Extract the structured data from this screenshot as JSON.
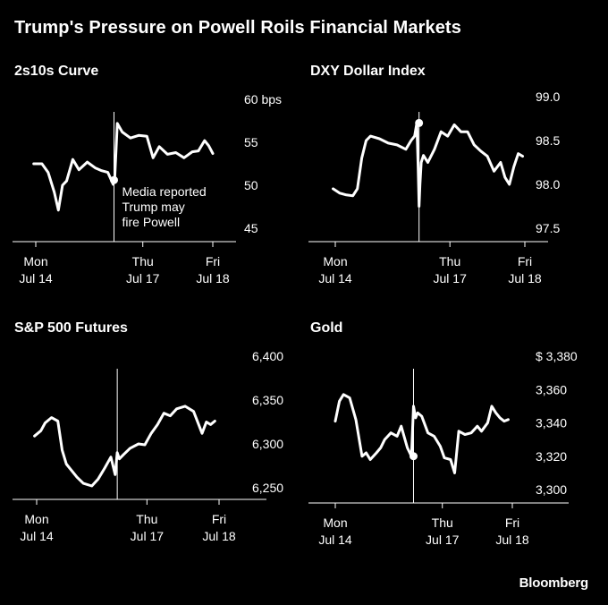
{
  "title": "Trump's Pressure on Powell Roils Financial Markets",
  "source": "Bloomberg",
  "chart_data": [
    {
      "type": "line",
      "title": "2s10s Curve",
      "yunit": "bps",
      "ylim": [
        45,
        60
      ],
      "yticks": [
        60,
        55,
        50,
        45
      ],
      "ytick_labels": [
        "60",
        "55",
        "50",
        "45"
      ],
      "xlim": [
        0,
        4.3
      ],
      "xticks": [
        {
          "x": 0,
          "top": "Mon",
          "bottom": "Jul 14"
        },
        {
          "x": 2.6,
          "top": "Thu",
          "bottom": "Jul 17"
        },
        {
          "x": 4.3,
          "top": "Fri",
          "bottom": "Jul 18"
        }
      ],
      "event_x": 1.9,
      "annotation": [
        "Media reported",
        "Trump may",
        "fire Powell"
      ],
      "series": [
        {
          "x": [
            -0.05,
            0.15,
            0.3,
            0.45,
            0.55,
            0.65,
            0.75,
            0.9,
            1.05,
            1.25,
            1.45,
            1.6,
            1.75,
            1.88,
            1.92,
            1.98,
            2.1,
            2.3,
            2.5,
            2.7,
            2.85,
            3.0,
            3.2,
            3.4,
            3.6,
            3.8,
            3.95,
            4.1,
            4.2,
            4.3
          ],
          "y": [
            52.5,
            52.5,
            51.5,
            49.2,
            47.1,
            50.0,
            50.5,
            53.0,
            51.8,
            52.7,
            52.0,
            51.7,
            51.5,
            50.1,
            51.0,
            57.2,
            56.2,
            55.5,
            55.8,
            55.7,
            53.2,
            54.5,
            53.6,
            53.8,
            53.2,
            53.9,
            54.0,
            55.2,
            54.6,
            53.7
          ]
        }
      ]
    },
    {
      "type": "line",
      "title": "DXY Dollar Index",
      "ylim": [
        97.5,
        99.0
      ],
      "yticks": [
        99.0,
        98.5,
        98.0,
        97.5
      ],
      "ytick_labels": [
        "99.0",
        "98.5",
        "98.0",
        "97.5"
      ],
      "xlim": [
        0,
        4.3
      ],
      "xticks": [
        {
          "x": 0,
          "top": "Mon",
          "bottom": "Jul 14"
        },
        {
          "x": 2.6,
          "top": "Thu",
          "bottom": "Jul 17"
        },
        {
          "x": 4.3,
          "top": "Fri",
          "bottom": "Jul 18"
        }
      ],
      "event_x": 1.9,
      "series": [
        {
          "x": [
            -0.05,
            0.1,
            0.25,
            0.4,
            0.5,
            0.6,
            0.7,
            0.8,
            1.0,
            1.2,
            1.4,
            1.6,
            1.72,
            1.8,
            1.85,
            1.88,
            1.9,
            1.92,
            1.95,
            2.0,
            2.1,
            2.25,
            2.4,
            2.55,
            2.7,
            2.85,
            3.0,
            3.15,
            3.3,
            3.45,
            3.6,
            3.75,
            3.85,
            3.95,
            4.05,
            4.15,
            4.25
          ],
          "y": [
            97.95,
            97.9,
            97.88,
            97.87,
            97.95,
            98.3,
            98.5,
            98.55,
            98.52,
            98.47,
            98.45,
            98.4,
            98.5,
            98.55,
            98.7,
            98.18,
            97.75,
            98.0,
            98.25,
            98.33,
            98.25,
            98.4,
            98.6,
            98.55,
            98.68,
            98.6,
            98.6,
            98.45,
            98.38,
            98.32,
            98.15,
            98.25,
            98.08,
            98.0,
            98.2,
            98.35,
            98.32
          ]
        }
      ]
    },
    {
      "type": "line",
      "title": "S&P 500 Futures",
      "ylim": [
        6250,
        6400
      ],
      "yticks": [
        6400,
        6350,
        6300,
        6250
      ],
      "ytick_labels": [
        "6,400",
        "6,350",
        "6,300",
        "6,250"
      ],
      "xlim": [
        0,
        4.3
      ],
      "xticks": [
        {
          "x": 0,
          "top": "Mon",
          "bottom": "Jul 14"
        },
        {
          "x": 2.6,
          "top": "Thu",
          "bottom": "Jul 17"
        },
        {
          "x": 4.3,
          "top": "Fri",
          "bottom": "Jul 18"
        }
      ],
      "event_x": 1.9,
      "series": [
        {
          "x": [
            -0.05,
            0.1,
            0.2,
            0.35,
            0.5,
            0.6,
            0.7,
            0.8,
            0.95,
            1.1,
            1.3,
            1.45,
            1.6,
            1.75,
            1.85,
            1.9,
            1.95,
            2.05,
            2.2,
            2.4,
            2.55,
            2.7,
            2.85,
            3.0,
            3.15,
            3.3,
            3.5,
            3.7,
            3.9,
            4.0,
            4.1,
            4.2
          ],
          "y": [
            6309,
            6315,
            6324,
            6330,
            6326,
            6293,
            6277,
            6271,
            6262,
            6255,
            6252,
            6260,
            6272,
            6285,
            6265,
            6290,
            6283,
            6288,
            6295,
            6300,
            6299,
            6312,
            6322,
            6335,
            6332,
            6340,
            6343,
            6337,
            6312,
            6325,
            6322,
            6326
          ]
        }
      ]
    },
    {
      "type": "line",
      "title": "Gold",
      "ylim": [
        3300,
        3380
      ],
      "yticks": [
        3380,
        3360,
        3340,
        3320,
        3300
      ],
      "ytick_labels": [
        "$ 3,380",
        "3,360",
        "3,340",
        "3,320",
        "3,300"
      ],
      "xlim": [
        0,
        4.3
      ],
      "xticks": [
        {
          "x": 0,
          "top": "Mon",
          "bottom": "Jul 14"
        },
        {
          "x": 2.6,
          "top": "Thu",
          "bottom": "Jul 17"
        },
        {
          "x": 4.3,
          "top": "Fri",
          "bottom": "Jul 18"
        }
      ],
      "event_x": 1.9,
      "series": [
        {
          "x": [
            0,
            0.1,
            0.2,
            0.35,
            0.5,
            0.65,
            0.75,
            0.85,
            1.0,
            1.1,
            1.2,
            1.35,
            1.5,
            1.6,
            1.75,
            1.85,
            1.9,
            1.95,
            2.0,
            2.1,
            2.25,
            2.4,
            2.55,
            2.65,
            2.8,
            2.9,
            3.0,
            3.15,
            3.3,
            3.45,
            3.55,
            3.7,
            3.8,
            3.9,
            4.0,
            4.1,
            4.2
          ],
          "y": [
            3341,
            3353,
            3357,
            3355,
            3342,
            3320,
            3322,
            3318,
            3322,
            3325,
            3330,
            3334,
            3332,
            3338,
            3325,
            3320,
            3350,
            3343,
            3346,
            3344,
            3334,
            3332,
            3326,
            3319,
            3318,
            3310,
            3335,
            3333,
            3334,
            3338,
            3335,
            3340,
            3350,
            3346,
            3343,
            3341,
            3342
          ]
        }
      ]
    }
  ]
}
